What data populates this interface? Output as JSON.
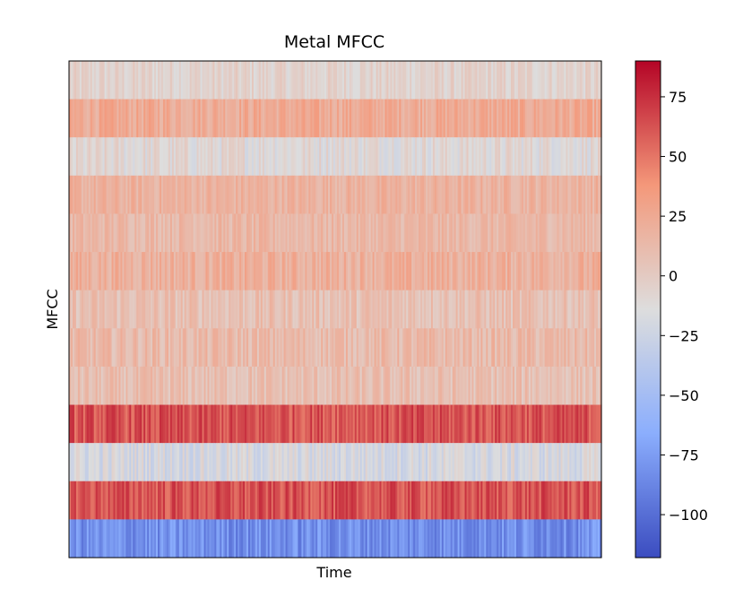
{
  "chart_data": {
    "type": "heatmap",
    "title": "Metal MFCC",
    "xlabel": "Time",
    "ylabel": "MFCC",
    "colormap": "coolwarm",
    "colorbar": {
      "min": -118,
      "max": 90,
      "ticks": [
        75,
        50,
        25,
        0,
        -25,
        -50,
        -75,
        -100
      ],
      "tick_labels": [
        "75",
        "50",
        "25",
        "0",
        "−25",
        "−50",
        "−75",
        "−100"
      ]
    },
    "n_frames": 300,
    "rows_top_to_bottom": [
      {
        "mean": -6,
        "spread": 10
      },
      {
        "mean": 24,
        "spread": 12
      },
      {
        "mean": -10,
        "spread": 12
      },
      {
        "mean": 18,
        "spread": 10
      },
      {
        "mean": 14,
        "spread": 10
      },
      {
        "mean": 20,
        "spread": 12
      },
      {
        "mean": 8,
        "spread": 12
      },
      {
        "mean": 12,
        "spread": 12
      },
      {
        "mean": 8,
        "spread": 12
      },
      {
        "mean": 62,
        "spread": 14
      },
      {
        "mean": -18,
        "spread": 14
      },
      {
        "mean": 62,
        "spread": 14
      },
      {
        "mean": -82,
        "spread": 16
      }
    ],
    "grid": false
  }
}
